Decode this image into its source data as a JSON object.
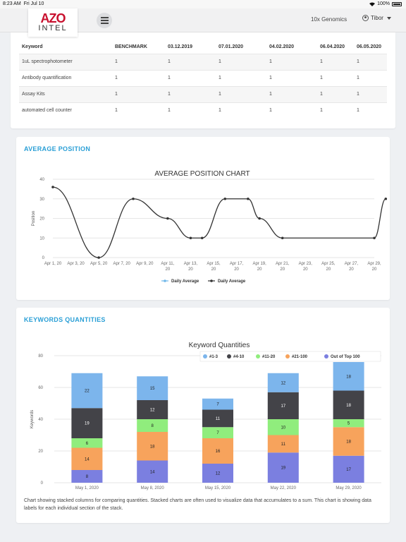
{
  "status": {
    "time": "8:23 AM",
    "date": "Fri Jul 10",
    "battery": "100%"
  },
  "header": {
    "logo_top": "AZO",
    "logo_bottom": "INTEL",
    "org_name": "10x Genomics",
    "user_name": "Tibor"
  },
  "keywords_table": {
    "headers": [
      "Keyword",
      "BENCHMARK",
      "03.12.2019",
      "07.01.2020",
      "04.02.2020",
      "06.04.2020",
      "06.05.2020"
    ],
    "rows": [
      [
        "1uL spectrophotometer",
        "1",
        "1",
        "1",
        "1",
        "1",
        "1"
      ],
      [
        "Antibody quantification",
        "1",
        "1",
        "1",
        "1",
        "1",
        "1"
      ],
      [
        "Assay Kits",
        "1",
        "1",
        "1",
        "1",
        "1",
        "1"
      ],
      [
        "automated cell counter",
        "1",
        "1",
        "1",
        "1",
        "1",
        "1"
      ]
    ]
  },
  "average_position": {
    "section_title": "AVERAGE POSITION",
    "chart_data": {
      "type": "line",
      "title": "AVERAGE POSITION CHART",
      "ylabel": "Position",
      "ylim": [
        0,
        40
      ],
      "yticks": [
        0,
        10,
        20,
        30,
        40
      ],
      "x": [
        "Apr 1, 20",
        "Apr 3, 20",
        "Apr 5, 20",
        "Apr 7, 20",
        "Apr 9, 20",
        "Apr 11, 20",
        "Apr 13, 20",
        "Apr 15, 20",
        "Apr 17, 20",
        "Apr 19, 20",
        "Apr 21, 20",
        "Apr 23, 20",
        "Apr 25, 20",
        "Apr 27, 20",
        "Apr 29, 20"
      ],
      "series": [
        {
          "name": "Daily Average",
          "color": "#6fb7e9",
          "points": []
        },
        {
          "name": "Daily Average",
          "color": "#333333",
          "points": [
            [
              0,
              36
            ],
            [
              2,
              0
            ],
            [
              3.5,
              30
            ],
            [
              5,
              20
            ],
            [
              6,
              10
            ],
            [
              6.5,
              10
            ],
            [
              7.5,
              30
            ],
            [
              8.5,
              30
            ],
            [
              9,
              20
            ],
            [
              10,
              10
            ],
            [
              14,
              10
            ],
            [
              14.5,
              30
            ]
          ]
        }
      ],
      "legend": "bottom",
      "grid": true
    }
  },
  "keyword_quantities": {
    "section_title": "KEYWORDS QUANTITIES",
    "caption": "Chart showing stacked columns for comparing quantities. Stacked charts are often used to visualize data that accumulates to a sum. This chart is showing data labels for each individual section of the stack.",
    "chart_data": {
      "type": "bar",
      "stacked": true,
      "title": "Keyword Quantities",
      "ylabel": "Keywords",
      "ylim": [
        0,
        80
      ],
      "yticks": [
        0,
        20,
        40,
        60,
        80
      ],
      "categories": [
        "May 1, 2020",
        "May 8, 2020",
        "May 15, 2020",
        "May 22, 2020",
        "May 29, 2020"
      ],
      "series": [
        {
          "name": "Out of Top 100",
          "color": "#7b7fe0",
          "values": [
            8,
            14,
            12,
            19,
            17
          ]
        },
        {
          "name": "#21-100",
          "color": "#f7a35c",
          "values": [
            14,
            18,
            16,
            11,
            18
          ]
        },
        {
          "name": "#11-20",
          "color": "#90ed7d",
          "values": [
            6,
            8,
            7,
            10,
            5
          ]
        },
        {
          "name": "#4-10",
          "color": "#434348",
          "values": [
            19,
            12,
            11,
            17,
            18
          ]
        },
        {
          "name": "#1-3",
          "color": "#7cb5ec",
          "values": [
            22,
            15,
            7,
            12,
            18
          ]
        }
      ],
      "legend_order": [
        "#1-3",
        "#4-10",
        "#11-20",
        "#21-100",
        "Out of Top 100"
      ],
      "legend": "top-right",
      "grid": true
    }
  }
}
